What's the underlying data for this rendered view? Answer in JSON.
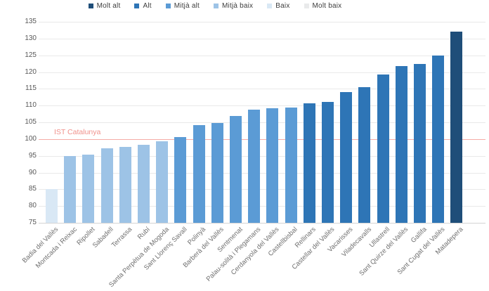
{
  "chart_data": {
    "type": "bar",
    "title": "",
    "xlabel": "",
    "ylabel": "",
    "grid": "horizontal",
    "legend_position": "top",
    "y_axis": {
      "min": 75,
      "max": 135,
      "step": 5
    },
    "categories": [
      "Badia del Vallès",
      "Montcada i Reixac",
      "Ripollet",
      "Sabadell",
      "Terrassa",
      "Rubí",
      "Santa Perpètua de Mogoda",
      "Sant Llorenç Savall",
      "Polinyà",
      "Barberà del Vallès",
      "Sentmenat",
      "Palau-solità i Plegamans",
      "Cerdanyola del Vallès",
      "Castellbisbal",
      "Rellinars",
      "Castellar del Vallès",
      "Vacarisses",
      "Viladecavalls",
      "Ullastrell",
      "Sant Quirze del Vallès",
      "Gallifa",
      "Sant Cugat del Vallès",
      "Matadepera"
    ],
    "values": [
      85.0,
      95.0,
      95.4,
      97.3,
      97.7,
      98.2,
      99.3,
      100.7,
      104.1,
      104.8,
      107.0,
      108.7,
      109.2,
      109.5,
      110.7,
      111.0,
      114.0,
      115.5,
      119.2,
      121.7,
      122.5,
      125.0,
      132.0
    ],
    "levels": [
      "baix",
      "mitja_baix",
      "mitja_baix",
      "mitja_baix",
      "mitja_baix",
      "mitja_baix",
      "mitja_baix",
      "mitja_alt",
      "mitja_alt",
      "mitja_alt",
      "mitja_alt",
      "mitja_alt",
      "mitja_alt",
      "mitja_alt",
      "alt",
      "alt",
      "alt",
      "alt",
      "alt",
      "alt",
      "alt",
      "alt",
      "molt_alt"
    ],
    "legend": [
      {
        "key": "molt_alt",
        "label": "Molt alt",
        "color": "#1F4E79"
      },
      {
        "key": "alt",
        "label": "Alt",
        "color": "#2E75B6"
      },
      {
        "key": "mitja_alt",
        "label": "Mitjà alt",
        "color": "#5B9BD5"
      },
      {
        "key": "mitja_baix",
        "label": "Mitjà baix",
        "color": "#9DC3E6"
      },
      {
        "key": "baix",
        "label": "Baix",
        "color": "#D9E8F5"
      },
      {
        "key": "molt_baix",
        "label": "Molt baix",
        "color": "#E9EAEB"
      }
    ],
    "reference_line": {
      "label": "IST Catalunya",
      "value": 100,
      "text_color": "#F0918B",
      "line_color": "#F5ACA6"
    }
  }
}
